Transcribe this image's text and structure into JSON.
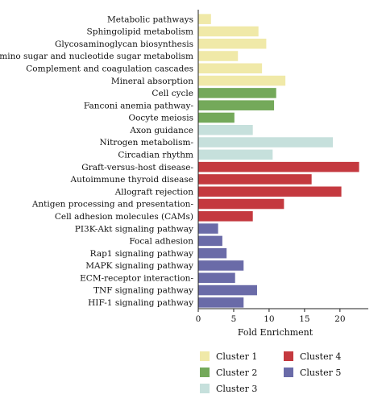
{
  "chart_data": {
    "type": "bar",
    "orientation": "horizontal",
    "xlabel": "Fold Enrichment",
    "xlim": [
      0,
      24
    ],
    "xticks": [
      0,
      5,
      10,
      15,
      20
    ],
    "grid": false,
    "legend_position": "bottom",
    "categories": [
      "Metabolic pathways",
      "Sphingolipid metabolism",
      "Glycosaminoglycan biosynthesis",
      "Amino sugar and nucleotide sugar metabolism",
      "Complement and coagulation cascades",
      "Mineral absorption",
      "Cell cycle",
      "Fanconi anemia pathway-",
      "Oocyte meiosis",
      "Axon guidance",
      "Nitrogen metabolism-",
      "Circadian rhythm",
      "Graft-versus-host disease-",
      "Autoimmune thyroid disease",
      "Allograft rejection",
      "Antigen processing and presentation-",
      "Cell adhesion molecules (CAMs)",
      "PI3K-Akt signaling pathway",
      "Focal adhesion",
      "Rap1 signaling pathway",
      "MAPK signaling pathway",
      "ECM-receptor interaction-",
      "TNF signaling pathway",
      "HIF-1 signaling pathway"
    ],
    "values": [
      1.8,
      8.5,
      9.6,
      5.6,
      9.0,
      12.3,
      11.0,
      10.7,
      5.1,
      7.7,
      19.0,
      10.5,
      22.7,
      16.0,
      20.2,
      12.1,
      7.7,
      2.8,
      3.4,
      4.0,
      6.4,
      5.2,
      8.3,
      6.4
    ],
    "clusters": [
      1,
      1,
      1,
      1,
      1,
      1,
      2,
      2,
      2,
      3,
      3,
      3,
      4,
      4,
      4,
      4,
      4,
      5,
      5,
      5,
      5,
      5,
      5,
      5
    ],
    "series": [
      {
        "name": "Cluster 1",
        "color": "#f0e9a8"
      },
      {
        "name": "Cluster 2",
        "color": "#74a95a"
      },
      {
        "name": "Cluster 3",
        "color": "#c6e0dc"
      },
      {
        "name": "Cluster 4",
        "color": "#c4393f"
      },
      {
        "name": "Cluster 5",
        "color": "#6a6ba8"
      }
    ]
  }
}
